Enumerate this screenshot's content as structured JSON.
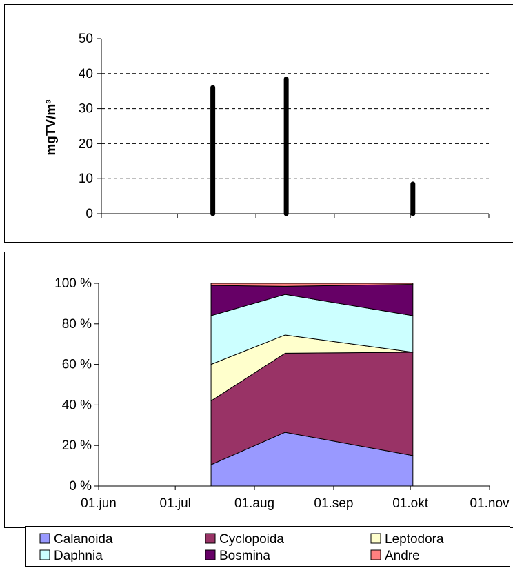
{
  "chart_data": [
    {
      "type": "bar",
      "ylabel": "mgTV/m³",
      "xlabel": "",
      "title": "",
      "ylim": [
        0,
        50
      ],
      "yticks": [
        "0",
        "10",
        "20",
        "30",
        "40",
        "50"
      ],
      "grid": true,
      "x": [
        "2023-07-15",
        "2023-08-13",
        "2023-10-02"
      ],
      "values": [
        36,
        38.5,
        8.5
      ],
      "bar_color": "#000000"
    },
    {
      "type": "area",
      "stacked": "percent",
      "title": "",
      "xlabel": "",
      "ylabel": "",
      "ylim": [
        0,
        100
      ],
      "yticks": [
        "0 %",
        "20 %",
        "40 %",
        "60 %",
        "80 %",
        "100 %"
      ],
      "xticks": [
        "01.jun",
        "01.jul",
        "01.aug",
        "01.sep",
        "01.okt",
        "01.nov"
      ],
      "x": [
        "2023-07-15",
        "2023-08-13",
        "2023-10-02"
      ],
      "series": [
        {
          "name": "Calanoida",
          "color": "#9999ff",
          "values": [
            10.5,
            26.5,
            15
          ]
        },
        {
          "name": "Cyclopoida",
          "color": "#993366",
          "values": [
            31.5,
            39,
            51
          ]
        },
        {
          "name": "Leptodora",
          "color": "#ffffcc",
          "values": [
            18,
            9,
            0
          ]
        },
        {
          "name": "Daphnia",
          "color": "#ccffff",
          "values": [
            24,
            20,
            18
          ]
        },
        {
          "name": "Bosmina",
          "color": "#660066",
          "values": [
            15,
            4,
            15.5
          ]
        },
        {
          "name": "Andre",
          "color": "#ff8080",
          "values": [
            1,
            1.5,
            0.5
          ]
        }
      ],
      "legend_position": "bottom"
    }
  ]
}
